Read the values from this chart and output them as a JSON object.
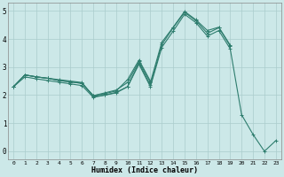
{
  "xlabel": "Humidex (Indice chaleur)",
  "background_color": "#cce8e8",
  "grid_color": "#aacccc",
  "line_color": "#2e7d6e",
  "x": [
    0,
    1,
    2,
    3,
    4,
    5,
    6,
    7,
    8,
    9,
    10,
    11,
    12,
    13,
    14,
    15,
    16,
    17,
    18,
    19,
    20,
    21,
    22,
    23
  ],
  "line1": [
    2.3,
    2.72,
    2.65,
    2.6,
    2.55,
    2.5,
    2.45,
    1.95,
    2.0,
    2.1,
    2.3,
    3.15,
    2.35,
    3.8,
    4.4,
    4.95,
    4.65,
    4.2,
    4.4,
    3.75,
    null,
    null,
    null,
    null
  ],
  "line2": [
    2.3,
    2.72,
    2.65,
    2.6,
    2.52,
    2.47,
    2.42,
    1.98,
    2.05,
    2.15,
    2.55,
    3.25,
    2.5,
    null,
    null,
    null,
    null,
    null,
    null,
    null,
    null,
    null,
    null,
    null
  ],
  "line3": [
    2.3,
    2.72,
    2.65,
    2.6,
    2.52,
    2.47,
    2.42,
    1.98,
    2.08,
    2.18,
    2.45,
    3.2,
    2.45,
    3.88,
    4.42,
    4.98,
    4.68,
    4.3,
    4.42,
    3.78,
    null,
    null,
    null,
    null
  ],
  "line4": [
    2.3,
    2.65,
    2.58,
    2.52,
    2.46,
    2.4,
    2.34,
    1.92,
    2.0,
    2.08,
    2.3,
    3.1,
    2.3,
    3.7,
    4.28,
    4.88,
    4.58,
    4.1,
    4.3,
    3.65,
    1.3,
    0.6,
    0.0,
    0.38
  ],
  "ylim": [
    0,
    5
  ],
  "xlim": [
    0,
    23
  ],
  "yticks": [
    0,
    1,
    2,
    3,
    4,
    5
  ],
  "xticks": [
    0,
    1,
    2,
    3,
    4,
    5,
    6,
    7,
    8,
    9,
    10,
    11,
    12,
    13,
    14,
    15,
    16,
    17,
    18,
    19,
    20,
    21,
    22,
    23
  ]
}
